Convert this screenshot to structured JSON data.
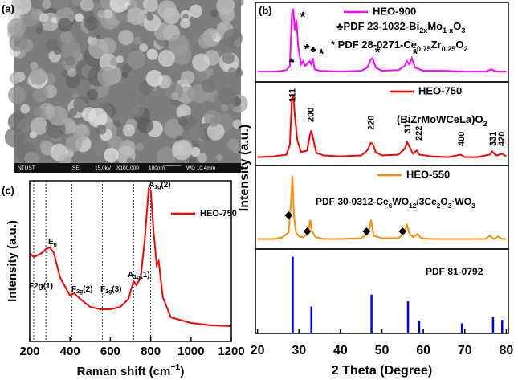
{
  "panel_labels": [
    "(a)",
    "(b)",
    "(c)"
  ],
  "sem_image": {
    "info": [
      "NTUST",
      "SEI",
      "15.0kV",
      "X100,000",
      "100nm",
      "WD 10.4mm"
    ]
  },
  "chart_data": [
    {
      "type": "line",
      "xlabel": [
        "Raman shift (cm",
        "−1",
        ")"
      ],
      "ylabel": "Intensity (a.u.)",
      "xlim": [
        200,
        1200
      ],
      "xticks": [
        200,
        400,
        600,
        800,
        1000,
        1200
      ],
      "ylim": [
        0,
        100
      ],
      "legend": "upper right",
      "series": [
        {
          "name": "HEO-750",
          "color": "#ff0000",
          "x": [
            200,
            220,
            260,
            280,
            300,
            320,
            350,
            400,
            420,
            450,
            500,
            550,
            600,
            650,
            690,
            715,
            730,
            750,
            770,
            790,
            800,
            815,
            830,
            840,
            860,
            900,
            1000,
            1100,
            1200
          ],
          "values": [
            55,
            52.5,
            55,
            57.5,
            58.5,
            55,
            40,
            28.5,
            30,
            26.5,
            21.5,
            20,
            20,
            21.5,
            26.5,
            37.5,
            35,
            40,
            62.5,
            95,
            94,
            67.5,
            47.5,
            50,
            27.5,
            15,
            11.5,
            10,
            9.5
          ]
        }
      ],
      "vlines": [
        220,
        280,
        410,
        560,
        715,
        800
      ],
      "annotations": [
        [
          "F2g(1)"
        ],
        [
          "E",
          "g"
        ],
        [
          "F",
          "2g",
          "(2)"
        ],
        [
          "F",
          "2g",
          "(3)"
        ],
        [
          "A",
          "1g",
          "(1)"
        ],
        [
          "A",
          "1g",
          "(2)"
        ]
      ]
    },
    {
      "type": "line",
      "xlim": [
        19.5,
        80.5
      ],
      "ylim": [
        0,
        100
      ],
      "legend": "upper right",
      "series": [
        {
          "name": "HEO-900",
          "color": "#ff00ff",
          "x": [
            20,
            24,
            26,
            27,
            27.8,
            28.3,
            28.6,
            29.0,
            29.4,
            29.8,
            30.5,
            31.0,
            31.5,
            32.2,
            32.6,
            33.0,
            33.3,
            33.8,
            35,
            40,
            45,
            46.5,
            47.3,
            47.8,
            48.5,
            50,
            54,
            55.5,
            56.0,
            56.6,
            57.2,
            58,
            60,
            65,
            70,
            75,
            76.5,
            77,
            78,
            80
          ],
          "values": [
            13,
            13,
            14,
            15,
            20,
            85,
            92,
            65,
            78,
            45,
            22,
            26,
            20,
            24,
            26,
            22,
            30,
            16,
            14,
            13,
            14,
            18,
            28,
            30,
            18,
            14,
            15,
            20,
            26,
            22,
            30,
            18,
            14,
            14,
            13,
            13,
            16,
            14,
            13,
            13
          ]
        }
      ],
      "annotations": [
        [
          "♣PDF 23-1032-Bi",
          "2x",
          "Mo",
          "1-x",
          "O",
          "3"
        ],
        [
          "* PDF 28-0271-Ce",
          "0.75",
          "Zr",
          "0.25",
          "O",
          "2"
        ]
      ],
      "peak_markers": [
        "♣",
        "*",
        "*",
        "♣",
        "*",
        "*",
        "*"
      ]
    },
    {
      "type": "line",
      "xlim": [
        19.5,
        80.5
      ],
      "ylim": [
        0,
        100
      ],
      "legend": "upper right",
      "series": [
        {
          "name": "HEO-750",
          "color": "#ff0000",
          "x": [
            20,
            24,
            27,
            27.8,
            28.3,
            28.6,
            29.0,
            29.6,
            30.5,
            32,
            32.6,
            33.0,
            33.5,
            34.2,
            36,
            40,
            45,
            46.5,
            47.3,
            47.8,
            48.5,
            50,
            54,
            55.5,
            56.1,
            56.7,
            57.5,
            58.4,
            59,
            62,
            66,
            69,
            70,
            73,
            76,
            76.6,
            77.5,
            79,
            80
          ],
          "values": [
            10,
            11,
            13,
            25,
            80,
            85,
            60,
            30,
            16,
            18,
            35,
            42,
            30,
            15,
            12,
            11,
            12,
            18,
            27,
            26,
            16,
            12,
            13,
            20,
            28,
            22,
            14,
            18,
            13,
            11,
            10,
            13,
            10,
            10,
            13,
            17,
            12,
            14,
            11
          ]
        }
      ],
      "annotations": [
        [
          "(BiZrMoWCeLa)O",
          "2"
        ]
      ],
      "peak_labels": [
        "111",
        "200",
        "220",
        "311",
        "222",
        "400",
        "331",
        "420"
      ]
    },
    {
      "type": "line",
      "xlim": [
        19.5,
        80.5
      ],
      "ylim": [
        0,
        100
      ],
      "legend": "upper right",
      "series": [
        {
          "name": "HEO-550",
          "color": "#ff8c00",
          "x": [
            20,
            24,
            26,
            27,
            27.5,
            28.0,
            28.4,
            28.8,
            29.3,
            30,
            31,
            32.2,
            32.7,
            33.1,
            34,
            36,
            40,
            45,
            46.5,
            47.0,
            47.4,
            48,
            50,
            54,
            55.5,
            56.0,
            56.5,
            57.5,
            58.6,
            59.5,
            62,
            66,
            70,
            75,
            76,
            77,
            78,
            79,
            80
          ],
          "values": [
            12,
            12,
            14,
            18,
            20,
            50,
            88,
            40,
            20,
            15,
            14,
            18,
            35,
            22,
            14,
            12,
            12,
            13,
            18,
            24,
            35,
            16,
            13,
            13,
            20,
            30,
            20,
            14,
            18,
            13,
            12,
            12,
            12,
            12,
            16,
            12,
            15,
            12,
            12
          ]
        }
      ],
      "annotations": [
        [
          "PDF 30-0312-Ce",
          "6",
          "WO",
          "12",
          "/3Ce",
          "2",
          "O",
          "3",
          "·WO",
          "3"
        ]
      ]
    },
    {
      "type": "stem",
      "xlabel": "2 Theta (Degree)",
      "ylabel": "Intensity (a.u.)",
      "xlim": [
        19.5,
        80.5
      ],
      "xticks": [
        20,
        30,
        40,
        50,
        60,
        70,
        80
      ],
      "ylim": [
        0,
        100
      ],
      "series": [
        {
          "name": "PDF 81-0792",
          "color": "#0000ff",
          "x": [
            28.5,
            33,
            47.5,
            56.3,
            59,
            69.3,
            76.8,
            79
          ],
          "values": [
            91,
            32,
            46,
            38,
            15,
            12,
            19,
            16
          ]
        }
      ]
    }
  ]
}
